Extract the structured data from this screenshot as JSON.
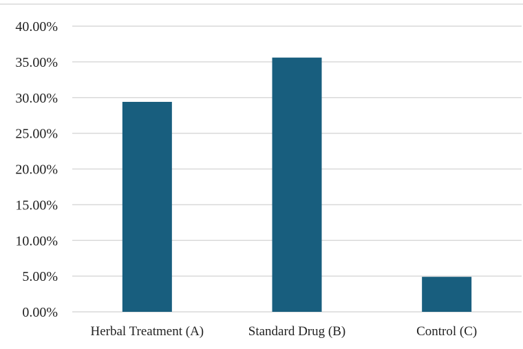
{
  "chart_data": {
    "type": "bar",
    "title": "",
    "xlabel": "",
    "ylabel": "",
    "categories": [
      "Herbal Treatment (A)",
      "Standard Drug (B)",
      "Control (C)"
    ],
    "values": [
      29.4,
      35.6,
      4.9
    ],
    "ylim": [
      0,
      40
    ],
    "y_ticks": [
      "0.00%",
      "5.00%",
      "10.00%",
      "15.00%",
      "20.00%",
      "25.00%",
      "30.00%",
      "35.00%",
      "40.00%"
    ],
    "y_tick_values": [
      0,
      5,
      10,
      15,
      20,
      25,
      30,
      35,
      40
    ],
    "grid": true,
    "legend": "none",
    "colors": {
      "bar": "#185E7E",
      "grid": "#D9D9D9",
      "frame": "#D9D9D9"
    }
  }
}
